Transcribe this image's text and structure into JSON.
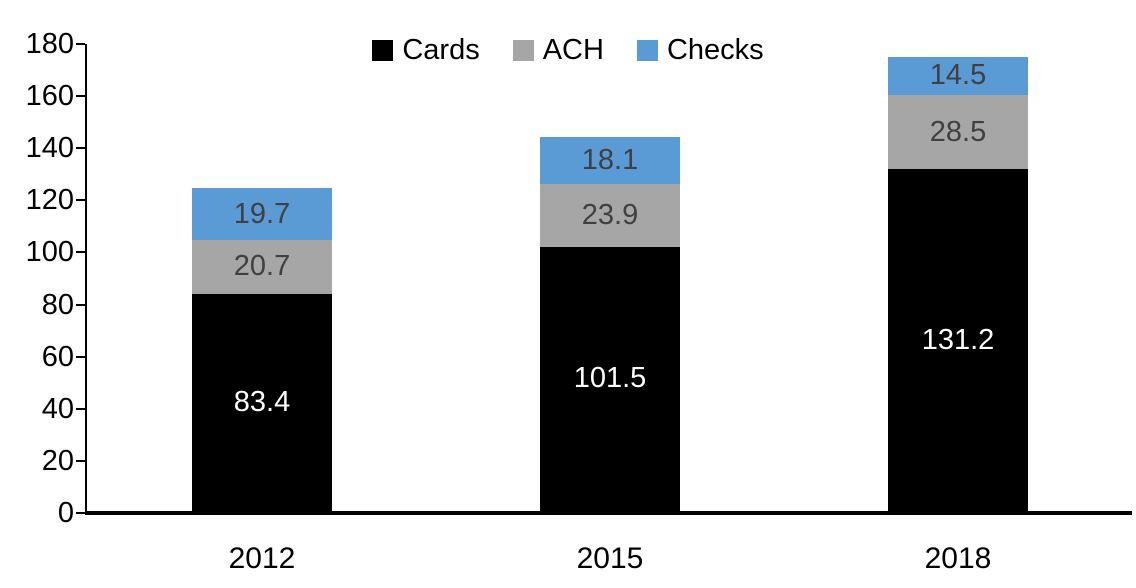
{
  "chart_data": {
    "type": "bar",
    "stacked": true,
    "title": "",
    "categories": [
      "2012",
      "2015",
      "2018"
    ],
    "series": [
      {
        "name": "Cards",
        "color": "#000000",
        "label_color": "#ffffff",
        "values": [
          83.4,
          101.5,
          131.2
        ]
      },
      {
        "name": "ACH",
        "color": "#A6A6A6",
        "label_color": "#404040",
        "values": [
          20.7,
          23.9,
          28.5
        ]
      },
      {
        "name": "Checks",
        "color": "#5B9BD5",
        "label_color": "#404040",
        "values": [
          19.7,
          18.1,
          14.5
        ]
      }
    ],
    "totals": [
      123.8,
      143.5,
      174.2
    ],
    "ylim": [
      0,
      180
    ],
    "ytick_step": 20,
    "ytick_labels": [
      "0",
      "20",
      "40",
      "60",
      "80",
      "100",
      "120",
      "140",
      "160",
      "180"
    ],
    "grid": false,
    "legend_position": "top",
    "legend_order": [
      "Cards",
      "ACH",
      "Checks"
    ],
    "axis_color": "#000000",
    "background_color": "#ffffff"
  }
}
